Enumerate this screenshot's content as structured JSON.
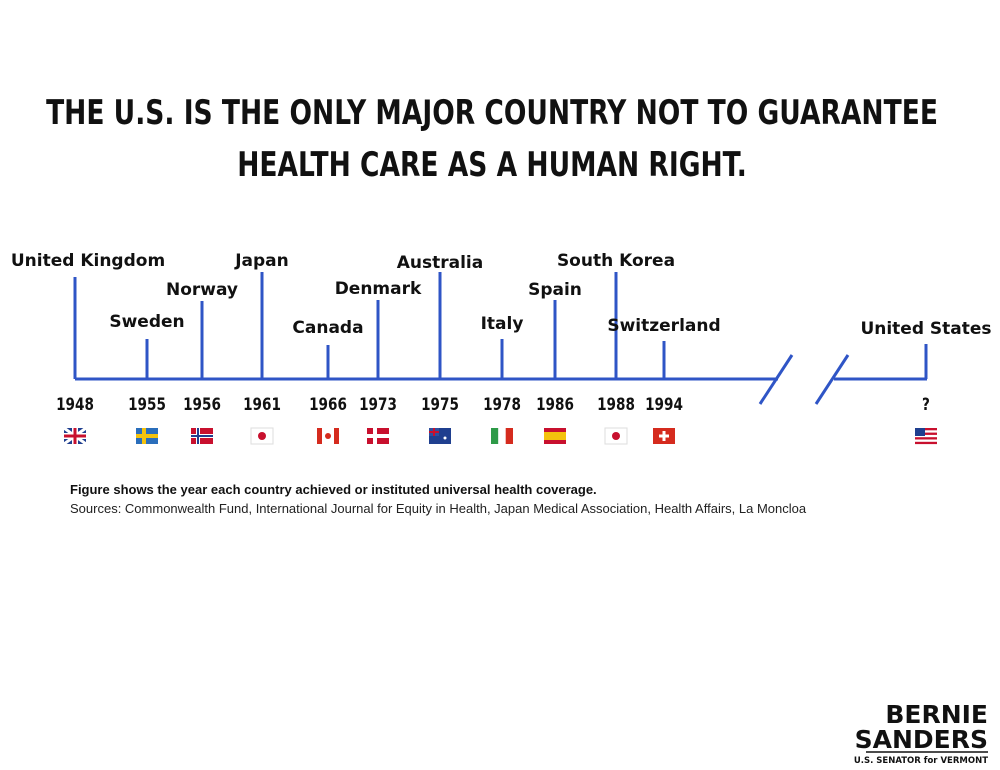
{
  "header": {
    "title_lines": [
      "THE U.S. IS THE ONLY MAJOR COUNTRY NOT TO GUARANTEE",
      "HEALTH CARE AS A HUMAN RIGHT."
    ]
  },
  "timeline": {
    "events": [
      {
        "country": "United Kingdom",
        "year": "1948"
      },
      {
        "country": "Sweden",
        "year": "1955"
      },
      {
        "country": "Norway",
        "year": "1956"
      },
      {
        "country": "Japan",
        "year": "1961"
      },
      {
        "country": "Canada",
        "year": "1966"
      },
      {
        "country": "Denmark",
        "year": "1973"
      },
      {
        "country": "Australia",
        "year": "1975"
      },
      {
        "country": "Italy",
        "year": "1978"
      },
      {
        "country": "Spain",
        "year": "1986"
      },
      {
        "country": "South Korea",
        "year": "1988"
      },
      {
        "country": "Switzerland",
        "year": "1994"
      },
      {
        "country": "United States",
        "year": "?"
      }
    ]
  },
  "footer": {
    "note": "Figure shows the year each country achieved or instituted universal health coverage.",
    "sources": "Sources: Commonwealth Fund, International Journal for Equity in Health, Japan Medical Association, Health Affairs, La Moncloa"
  },
  "logo": {
    "line1": "BERNIE",
    "line2": "SANDERS",
    "line3": "U.S. SENATOR for VERMONT"
  }
}
